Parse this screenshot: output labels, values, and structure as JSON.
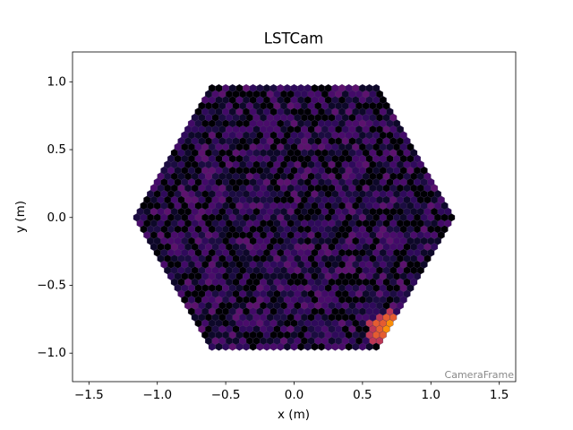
{
  "chart_data": {
    "type": "camera",
    "title": "LSTCam",
    "x_label": "x  (m)",
    "y_label": "y  (m)",
    "annotation": "CameraFrame",
    "xlim": [
      -1.62,
      1.62
    ],
    "ylim": [
      -1.21,
      1.22
    ],
    "xticks": [
      {
        "value": -1.5,
        "label": "−1.5"
      },
      {
        "value": -1.0,
        "label": "−1.0"
      },
      {
        "value": -0.5,
        "label": "−0.5"
      },
      {
        "value": 0,
        "label": "0.0"
      },
      {
        "value": 0.5,
        "label": "0.5"
      },
      {
        "value": 1.0,
        "label": "1.0"
      },
      {
        "value": 1.5,
        "label": "1.5"
      }
    ],
    "yticks": [
      {
        "value": -1.0,
        "label": "−1.0"
      },
      {
        "value": -0.5,
        "label": "−0.5"
      },
      {
        "value": 0,
        "label": "0.0"
      },
      {
        "value": 0.5,
        "label": "0.5"
      },
      {
        "value": 1.0,
        "label": "1.0"
      }
    ]
  }
}
